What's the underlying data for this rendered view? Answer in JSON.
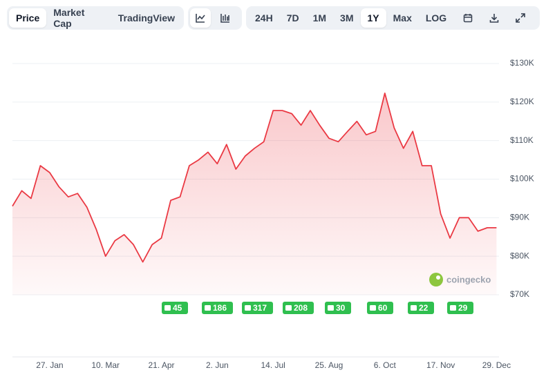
{
  "toolbar": {
    "views": [
      "Price",
      "Market Cap",
      "TradingView"
    ],
    "ranges": [
      "24H",
      "7D",
      "1M",
      "3M",
      "1Y",
      "Max",
      "LOG"
    ]
  },
  "events": [
    "45",
    "186",
    "317",
    "208",
    "30",
    "60",
    "22",
    "29"
  ],
  "watermark": "coingecko",
  "chart_data": {
    "type": "line",
    "categories": [
      null,
      null,
      null,
      null,
      "27. Jan",
      null,
      null,
      null,
      null,
      null,
      "10. Mar",
      null,
      null,
      null,
      null,
      null,
      "21. Apr",
      null,
      null,
      null,
      null,
      null,
      "2. Jun",
      null,
      null,
      null,
      null,
      null,
      "14. Jul",
      null,
      null,
      null,
      null,
      null,
      "25. Aug",
      null,
      null,
      null,
      null,
      null,
      "6. Oct",
      null,
      null,
      null,
      null,
      null,
      "17. Nov",
      null,
      null,
      null,
      null,
      null,
      "29. Dec"
    ],
    "series": [
      {
        "name": "Price",
        "color": "#ea3943",
        "values": [
          93000,
          97000,
          95000,
          103500,
          101700,
          98000,
          95400,
          96300,
          92700,
          87000,
          80000,
          84000,
          85600,
          83000,
          78500,
          83000,
          84700,
          94500,
          95400,
          103500,
          105000,
          107000,
          104000,
          109000,
          102600,
          106000,
          108000,
          109700,
          117800,
          117800,
          117000,
          114000,
          117800,
          114000,
          110600,
          109700,
          112400,
          115000,
          111500,
          112400,
          122300,
          113300,
          108000,
          112400,
          103500,
          103500,
          91000,
          84700,
          90000,
          90000,
          86500,
          87400,
          87400
        ]
      }
    ],
    "ylim": [
      70000,
      130000
    ],
    "yticks": [
      {
        "value": 70000,
        "label": "$70K"
      },
      {
        "value": 80000,
        "label": "$80K"
      },
      {
        "value": 90000,
        "label": "$90K"
      },
      {
        "value": 100000,
        "label": "$100K"
      },
      {
        "value": 110000,
        "label": "$110K"
      },
      {
        "value": 120000,
        "label": "$120K"
      },
      {
        "value": 130000,
        "label": "$130K"
      }
    ],
    "grid": true
  }
}
